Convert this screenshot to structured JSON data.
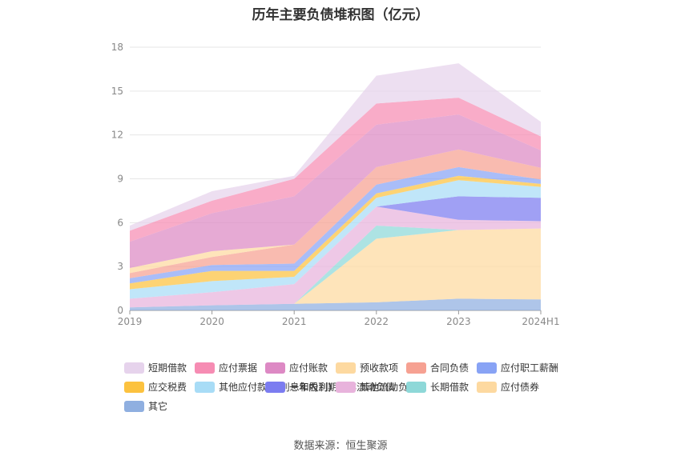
{
  "chart_data": {
    "type": "area",
    "title": "历年主要负债堆积图（亿元）",
    "x": [
      "2019",
      "2020",
      "2021",
      "2022",
      "2023",
      "2024H1"
    ],
    "yticks": [
      0,
      3,
      6,
      9,
      12,
      15,
      18
    ],
    "ylim": [
      0,
      18
    ],
    "grid": true,
    "stacked": true,
    "legend_position": "bottom",
    "series": [
      {
        "name": "其它",
        "color": "#8fafe0",
        "values": [
          0.2,
          0.35,
          0.45,
          0.55,
          0.8,
          0.75
        ]
      },
      {
        "name": "应付债券",
        "color": "#fdd9a0",
        "values": [
          0,
          0,
          0,
          4.35,
          4.7,
          4.85
        ]
      },
      {
        "name": "长期借款",
        "color": "#8ed8d8",
        "values": [
          0,
          0,
          0,
          0.9,
          0,
          0
        ]
      },
      {
        "name": "其他流动负债",
        "color": "#e8b3dc",
        "values": [
          0.6,
          0.9,
          1.35,
          1.3,
          0.7,
          0.5
        ]
      },
      {
        "name": "一年内到期的非流动负债",
        "color": "#7b7cf0",
        "values": [
          0,
          0,
          0,
          0,
          1.6,
          1.6
        ]
      },
      {
        "name": "其他应付款(含利息和股利)",
        "color": "#a8dcf6",
        "values": [
          0.65,
          0.75,
          0.5,
          0.6,
          1.1,
          0.75
        ]
      },
      {
        "name": "应交税费",
        "color": "#fcc23f",
        "values": [
          0.4,
          0.7,
          0.4,
          0.3,
          0.3,
          0.2
        ]
      },
      {
        "name": "应付职工薪酬",
        "color": "#88a3f5",
        "values": [
          0.35,
          0.4,
          0.5,
          0.6,
          0.6,
          0.3
        ]
      },
      {
        "name": "合同负债",
        "color": "#f6a192",
        "values": [
          0.35,
          0.55,
          1.3,
          1.2,
          1.2,
          0.8
        ]
      },
      {
        "name": "预收款项",
        "color": "#fdd9a0",
        "values": [
          0.35,
          0.4,
          0,
          0,
          0,
          0
        ]
      },
      {
        "name": "应付账款",
        "color": "#dd89c4",
        "values": [
          1.8,
          2.6,
          3.3,
          2.9,
          2.4,
          1.2
        ]
      },
      {
        "name": "应付票据",
        "color": "#f68cb3",
        "values": [
          0.75,
          0.85,
          1.2,
          1.45,
          1.15,
          0.95
        ]
      },
      {
        "name": "短期借款",
        "color": "#e6d3ec",
        "values": [
          0.35,
          0.65,
          0.2,
          1.9,
          2.35,
          1.0
        ]
      }
    ],
    "legend_order": [
      "短期借款",
      "应付票据",
      "应付账款",
      "预收款项",
      "合同负债",
      "应付职工薪酬",
      "应交税费",
      "其他应付款(含利息和股利)",
      "一年内到期的非流动负债",
      "其他流动负债",
      "长期借款",
      "应付债券",
      "其它"
    ]
  },
  "source_text": "数据来源：恒生聚源"
}
